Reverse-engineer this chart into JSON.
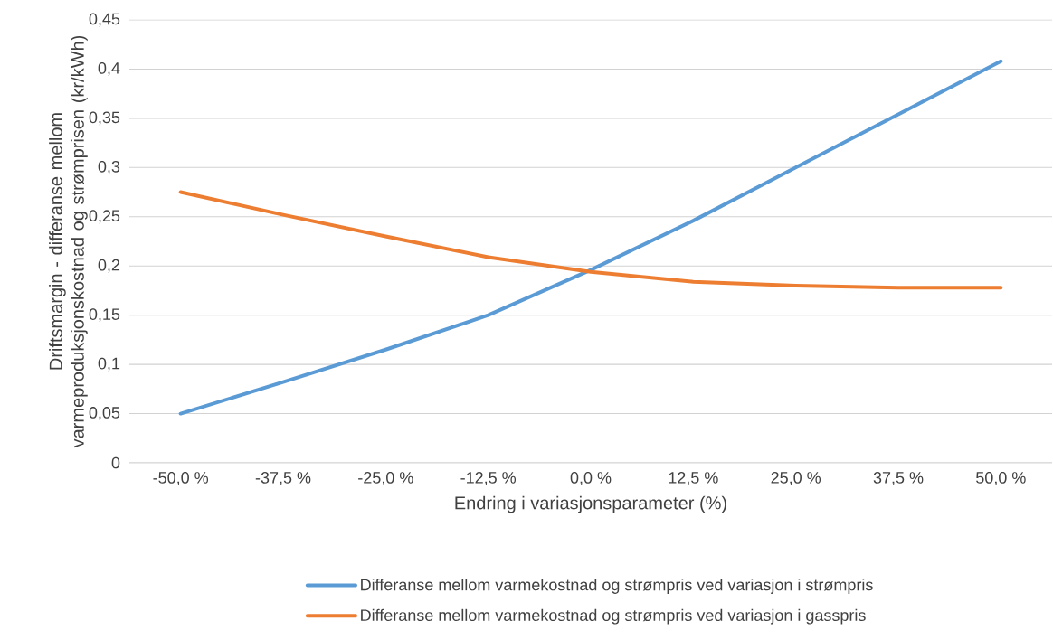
{
  "chart_data": {
    "type": "line",
    "xlabel": "Endring i variasjonsparameter (%)",
    "ylabel": "Driftsmargin - differanse mellom varmeproduksjonskostnad og strømprisen (kr/kWh)",
    "categories": [
      "-50,0 %",
      "-37,5 %",
      "-25,0 %",
      "-12,5 %",
      "0,0 %",
      "12,5 %",
      "25,0 %",
      "37,5 %",
      "50,0 %"
    ],
    "series": [
      {
        "name": "Differanse mellom varmekostnad og strømpris ved variasjon i strømpris",
        "color": "#5b9bd5",
        "values": [
          0.05,
          0.082,
          0.115,
          0.15,
          0.196,
          0.246,
          0.3,
          0.354,
          0.408
        ]
      },
      {
        "name": "Differanse mellom varmekostnad og strømpris ved variasjon i gasspris",
        "color": "#ed7d31",
        "values": [
          0.275,
          0.252,
          0.23,
          0.209,
          0.194,
          0.184,
          0.18,
          0.178,
          0.178
        ]
      }
    ],
    "ylim": [
      0,
      0.45
    ],
    "yticks": [
      0,
      {
        "value": 0.05,
        "label": "0,05"
      },
      {
        "value": 0.1,
        "label": "0,1"
      },
      {
        "value": 0.15,
        "label": "0,15"
      },
      {
        "value": 0.2,
        "label": "0,2"
      },
      {
        "value": 0.25,
        "label": "0,25"
      },
      {
        "value": 0.3,
        "label": "0,3"
      },
      {
        "value": 0.35,
        "label": "0,35"
      },
      {
        "value": 0.4,
        "label": "0,4"
      },
      {
        "value": 0.45,
        "label": "0,45"
      }
    ],
    "grid": "y",
    "legend": "bottom"
  }
}
